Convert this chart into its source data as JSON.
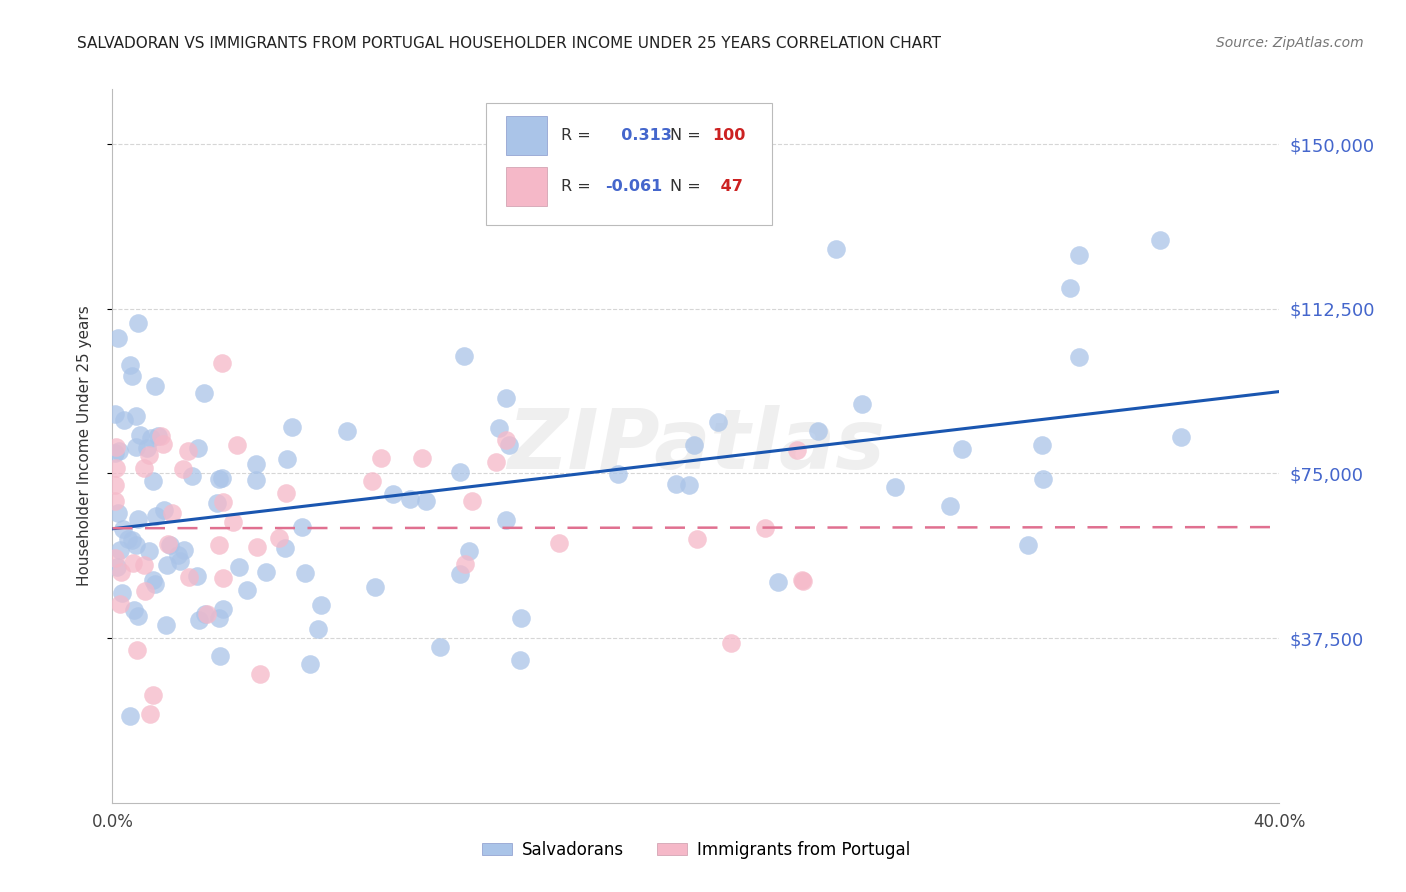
{
  "title": "SALVADORAN VS IMMIGRANTS FROM PORTUGAL HOUSEHOLDER INCOME UNDER 25 YEARS CORRELATION CHART",
  "source": "Source: ZipAtlas.com",
  "ylabel": "Householder Income Under 25 years",
  "ytick_labels": [
    "$37,500",
    "$75,000",
    "$112,500",
    "$150,000"
  ],
  "ytick_values": [
    37500,
    75000,
    112500,
    150000
  ],
  "ylim": [
    0,
    162500
  ],
  "xlim": [
    0.0,
    0.4
  ],
  "blue_color": "#aac4e8",
  "pink_color": "#f5b8c8",
  "blue_line_color": "#1a56b0",
  "pink_line_color": "#e07090",
  "ytick_color": "#4466cc",
  "R_blue": 0.313,
  "N_blue": 100,
  "R_pink": -0.061,
  "N_pink": 47,
  "legend_label_blue": "Salvadorans",
  "legend_label_pink": "Immigrants from Portugal",
  "watermark": "ZIPatlas",
  "R_color": "#4466cc",
  "N_color": "#cc2222"
}
